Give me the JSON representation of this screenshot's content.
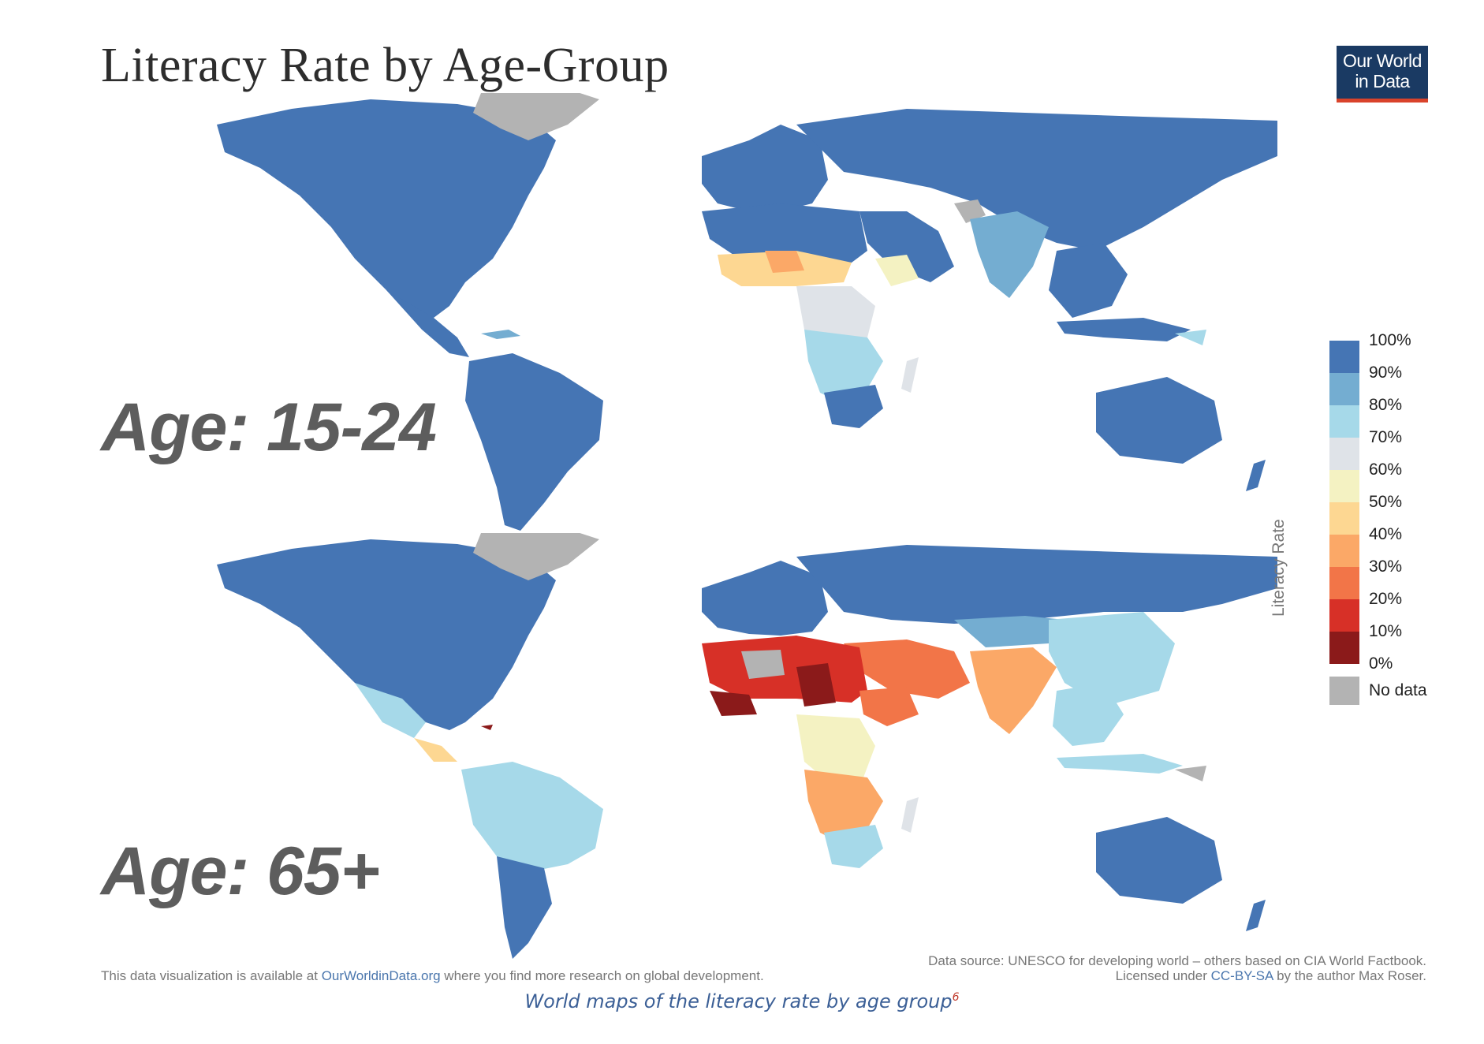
{
  "title": "Literacy Rate by Age-Group",
  "logo": {
    "line1": "Our World",
    "line2": "in Data"
  },
  "maps": [
    {
      "label": "Age: 15-24"
    },
    {
      "label": "Age: 65+"
    }
  ],
  "legend": {
    "title": "Literacy Rate",
    "ticks": [
      "100%",
      "90%",
      "80%",
      "70%",
      "60%",
      "50%",
      "40%",
      "30%",
      "20%",
      "10%",
      "0%"
    ],
    "bins": [
      {
        "range": "90-100%",
        "color": "#4575b4"
      },
      {
        "range": "80-90%",
        "color": "#74add1"
      },
      {
        "range": "70-80%",
        "color": "#a6d9e9"
      },
      {
        "range": "60-70%",
        "color": "#dfe3e8"
      },
      {
        "range": "50-60%",
        "color": "#f4f2c2"
      },
      {
        "range": "40-50%",
        "color": "#fdd792"
      },
      {
        "range": "30-40%",
        "color": "#fba867"
      },
      {
        "range": "20-30%",
        "color": "#f27548"
      },
      {
        "range": "10-20%",
        "color": "#d73027"
      },
      {
        "range": "0-10%",
        "color": "#8b1a1a"
      }
    ],
    "nodata_label": "No data",
    "nodata_color": "#b3b3b3"
  },
  "footer": {
    "left_prefix": "This data visualization is available at ",
    "left_link": "OurWorldinData.org",
    "left_suffix": " where you find more research on global development.",
    "source_label": "Data source:",
    "source_text": " UNESCO for developing world – others based on CIA World Factbook.",
    "license_prefix": "Licensed under ",
    "license_link": "CC-BY-SA",
    "license_suffix": " by the author Max Roser."
  },
  "caption": {
    "text": "World maps of the literacy rate by age group",
    "footnote": "6"
  }
}
